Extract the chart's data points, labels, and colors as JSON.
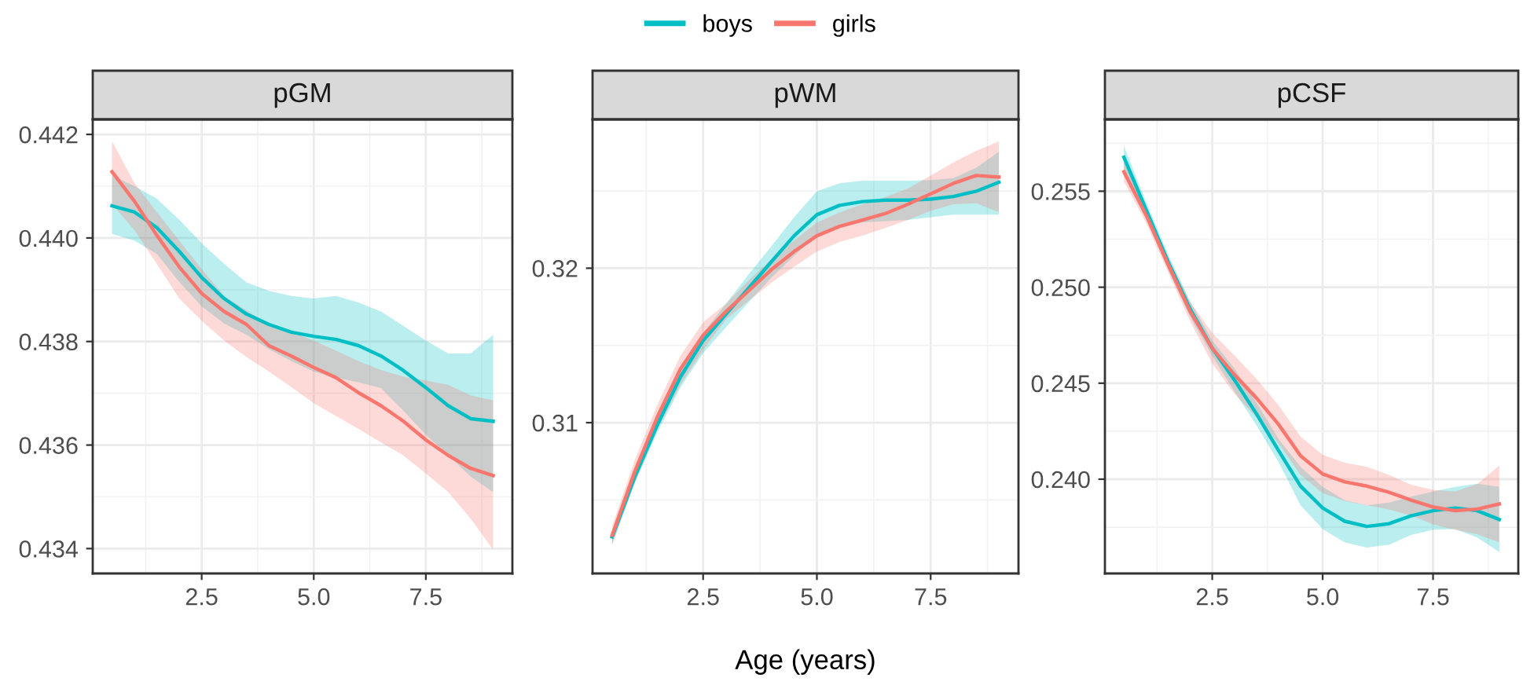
{
  "chart_data": [
    {
      "type": "line",
      "title": "pGM",
      "legend": "top",
      "grid": true,
      "xlim": [
        0.07,
        9.43
      ],
      "xticks": [
        {
          "value": 2.5,
          "label": "2.5"
        },
        {
          "value": 5.0,
          "label": "5.0"
        },
        {
          "value": 7.5,
          "label": "7.5"
        }
      ],
      "ylim": [
        0.43352,
        0.44229
      ],
      "yticks": [
        {
          "value": 0.434,
          "label": "0.434"
        },
        {
          "value": 0.436,
          "label": "0.436"
        },
        {
          "value": 0.438,
          "label": "0.438"
        },
        {
          "value": 0.44,
          "label": "0.440"
        },
        {
          "value": 0.442,
          "label": "0.442"
        }
      ],
      "x": [
        0.5,
        1.0,
        1.5,
        2.0,
        2.5,
        3.0,
        3.5,
        4.0,
        4.5,
        5.0,
        5.5,
        6.0,
        6.5,
        7.0,
        7.5,
        8.0,
        8.5,
        9.0
      ],
      "series": [
        {
          "name": "boys",
          "color": "#00bfc4",
          "values": [
            0.44062,
            0.4405,
            0.4402,
            0.43974,
            0.43924,
            0.43883,
            0.43853,
            0.43833,
            0.43818,
            0.4381,
            0.43804,
            0.43792,
            0.43772,
            0.43744,
            0.43711,
            0.43676,
            0.43651,
            0.43646
          ],
          "upper": [
            0.44121,
            0.441,
            0.44076,
            0.44035,
            0.4399,
            0.4395,
            0.43914,
            0.43898,
            0.43888,
            0.43883,
            0.43888,
            0.43875,
            0.43858,
            0.4383,
            0.43802,
            0.43777,
            0.43777,
            0.43813
          ],
          "lower": [
            0.44008,
            0.43995,
            0.43969,
            0.43915,
            0.43868,
            0.43835,
            0.43813,
            0.43785,
            0.43762,
            0.43742,
            0.4373,
            0.43721,
            0.4371,
            0.43666,
            0.4362,
            0.4358,
            0.43539,
            0.43509
          ]
        },
        {
          "name": "girls",
          "color": "#f8766d",
          "values": [
            0.44128,
            0.44071,
            0.44005,
            0.43944,
            0.43893,
            0.43858,
            0.43833,
            0.43792,
            0.43772,
            0.4375,
            0.4373,
            0.43701,
            0.43676,
            0.43646,
            0.4361,
            0.4358,
            0.43555,
            0.43541
          ],
          "upper": [
            0.44187,
            0.44106,
            0.4405,
            0.43995,
            0.4394,
            0.43888,
            0.4386,
            0.43833,
            0.43818,
            0.43802,
            0.43782,
            0.43762,
            0.43745,
            0.43732,
            0.43725,
            0.43716,
            0.43696,
            0.43686
          ],
          "lower": [
            0.44065,
            0.44015,
            0.4395,
            0.43883,
            0.4384,
            0.43802,
            0.4377,
            0.43742,
            0.43712,
            0.43681,
            0.43656,
            0.43631,
            0.43605,
            0.4358,
            0.43545,
            0.43509,
            0.43458,
            0.43398
          ]
        }
      ]
    },
    {
      "type": "line",
      "title": "pWM",
      "xlabel": "Age (years)",
      "grid": true,
      "xlim": [
        0.07,
        9.43
      ],
      "xticks": [
        {
          "value": 2.5,
          "label": "2.5"
        },
        {
          "value": 5.0,
          "label": "5.0"
        },
        {
          "value": 7.5,
          "label": "7.5"
        }
      ],
      "ylim": [
        0.30024,
        0.32963
      ],
      "yticks": [
        0.31,
        0.32
      ],
      "x": [
        0.5,
        1.0,
        1.5,
        2.0,
        2.5,
        3.0,
        3.5,
        4.0,
        4.5,
        5.0,
        5.5,
        6.0,
        6.5,
        7.0,
        7.5,
        8.0,
        8.5,
        9.0
      ],
      "series": [
        {
          "color": "#00bfc4",
          "values": [
            0.30261,
            0.30651,
            0.3099,
            0.31295,
            0.31532,
            0.31702,
            0.31871,
            0.32041,
            0.3221,
            0.32346,
            0.32407,
            0.32431,
            0.32441,
            0.32441,
            0.32447,
            0.32464,
            0.32498,
            0.32556
          ],
          "upper": [
            0.30295,
            0.3069,
            0.3104,
            0.3133,
            0.3158,
            0.31769,
            0.3196,
            0.32142,
            0.3233,
            0.32498,
            0.3255,
            0.32566,
            0.32566,
            0.32566,
            0.3257,
            0.32583,
            0.3265,
            0.32753
          ],
          "lower": [
            0.3021,
            0.3061,
            0.3094,
            0.31227,
            0.3145,
            0.31617,
            0.3178,
            0.31939,
            0.3208,
            0.3221,
            0.3226,
            0.32295,
            0.32305,
            0.32312,
            0.3233,
            0.32346,
            0.32346,
            0.32346
          ]
        },
        {
          "color": "#f8766d",
          "values": [
            0.30271,
            0.30685,
            0.31041,
            0.31346,
            0.31566,
            0.31719,
            0.31854,
            0.3199,
            0.32108,
            0.3221,
            0.32271,
            0.32312,
            0.32353,
            0.32414,
            0.32481,
            0.32549,
            0.326,
            0.3259
          ],
          "upper": [
            0.30329,
            0.3076,
            0.3112,
            0.31431,
            0.3165,
            0.31769,
            0.3192,
            0.32058,
            0.3218,
            0.32295,
            0.3236,
            0.32414,
            0.3246,
            0.32515,
            0.326,
            0.32685,
            0.3276,
            0.3282
          ],
          "lower": [
            0.3021,
            0.3061,
            0.3096,
            0.31244,
            0.3147,
            0.31668,
            0.3179,
            0.31905,
            0.3201,
            0.32108,
            0.3217,
            0.3221,
            0.3226,
            0.32312,
            0.3237,
            0.32414,
            0.3242,
            0.32363
          ]
        }
      ]
    },
    {
      "type": "line",
      "title": "pCSF",
      "grid": true,
      "xlim": [
        0.07,
        9.43
      ],
      "xticks": [
        {
          "value": 2.5,
          "label": "2.5"
        },
        {
          "value": 5.0,
          "label": "5.0"
        },
        {
          "value": 7.5,
          "label": "7.5"
        }
      ],
      "ylim": [
        0.23509,
        0.25874
      ],
      "yticks": [
        {
          "value": 0.24,
          "label": "0.240"
        },
        {
          "value": 0.245,
          "label": "0.245"
        },
        {
          "value": 0.25,
          "label": "0.250"
        },
        {
          "value": 0.255,
          "label": "0.255"
        }
      ],
      "x": [
        0.5,
        1.0,
        1.5,
        2.0,
        2.5,
        3.0,
        3.5,
        4.0,
        4.5,
        5.0,
        5.5,
        6.0,
        6.5,
        7.0,
        7.5,
        8.0,
        8.5,
        9.0
      ],
      "series": [
        {
          "color": "#00bfc4",
          "values": [
            0.25677,
            0.25405,
            0.25132,
            0.24886,
            0.24682,
            0.24518,
            0.24341,
            0.2415,
            0.23964,
            0.2385,
            0.23781,
            0.23754,
            0.23768,
            0.23809,
            0.23836,
            0.2385,
            0.23836,
            0.2379
          ],
          "upper": [
            0.25737,
            0.25445,
            0.25172,
            0.24926,
            0.24722,
            0.24578,
            0.24401,
            0.2421,
            0.24064,
            0.2396,
            0.23891,
            0.23864,
            0.23878,
            0.23909,
            0.23936,
            0.2396,
            0.23976,
            0.2396
          ],
          "lower": [
            0.25617,
            0.25365,
            0.25092,
            0.24846,
            0.24642,
            0.24458,
            0.24281,
            0.2409,
            0.23864,
            0.2374,
            0.23671,
            0.23644,
            0.23658,
            0.23709,
            0.23736,
            0.2374,
            0.23696,
            0.2362
          ]
        },
        {
          "color": "#f8766d",
          "values": [
            0.25601,
            0.25377,
            0.25118,
            0.24873,
            0.24682,
            0.24545,
            0.24423,
            0.24286,
            0.24122,
            0.24027,
            0.23986,
            0.23964,
            0.23932,
            0.23891,
            0.23855,
            0.23836,
            0.23844,
            0.23871
          ],
          "upper": [
            0.25651,
            0.25417,
            0.25158,
            0.24923,
            0.24762,
            0.24645,
            0.24523,
            0.24386,
            0.24222,
            0.24127,
            0.24086,
            0.24064,
            0.24022,
            0.23971,
            0.23945,
            0.23936,
            0.23974,
            0.24071
          ],
          "lower": [
            0.25551,
            0.25337,
            0.25078,
            0.24823,
            0.24602,
            0.24445,
            0.24323,
            0.24186,
            0.24022,
            0.23927,
            0.23886,
            0.23864,
            0.23842,
            0.23811,
            0.23765,
            0.23736,
            0.23714,
            0.23671
          ]
        }
      ]
    }
  ]
}
